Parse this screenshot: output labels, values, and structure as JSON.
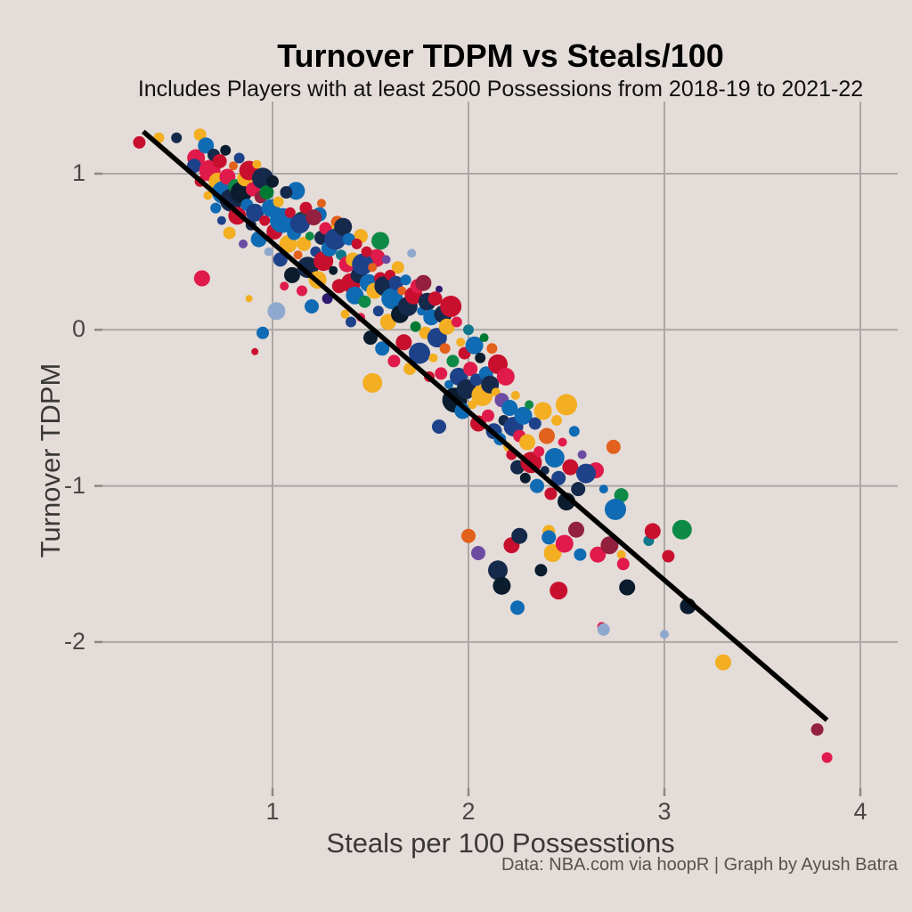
{
  "header": {
    "title": "Turnover TDPM vs Steals/100",
    "subtitle": "Includes Players with at least 2500 Possessions from 2018-19 to 2021-22"
  },
  "caption": "Data: NBA.com via hoopR | Graph by Ayush Batra",
  "style": {
    "background": "#E4DCD8",
    "grid_color": "#ABA7A4",
    "tick_mark_color": "#8B8885",
    "tick_label_color": "#4A4745",
    "axis_title_color": "#3A3836",
    "caption_color": "#56524E",
    "trend_color": "#000000"
  },
  "chart_data": {
    "type": "scatter",
    "title": "Turnover TDPM vs Steals/100",
    "subtitle": "Includes Players with at least 2500 Possessions from 2018-19 to 2021-22",
    "xlabel": "Steals per 100 Possesstions",
    "ylabel": "Turnover TDPM",
    "xlim": [
      0.13,
      4.19
    ],
    "ylim": [
      -2.92,
      1.46
    ],
    "x_ticks": [
      1,
      2,
      3,
      4
    ],
    "y_ticks": [
      1,
      0,
      -1,
      -2
    ],
    "grid": true,
    "legend": "none",
    "trend_line": {
      "x1": 0.34,
      "y1": 1.27,
      "x2": 3.83,
      "y2": -2.5,
      "width": 5.5
    },
    "palette": [
      "#1D428A",
      "#0F6BB4",
      "#15294B",
      "#0B1C2E",
      "#C8102E",
      "#E01A4B",
      "#93203F",
      "#F3AE21",
      "#E2611C",
      "#007A33",
      "#0E8A47",
      "#0D4B2E",
      "#11788C",
      "#6C4BA3",
      "#2C1A6E",
      "#8FA9CE"
    ],
    "point_format": [
      "steals_per_100",
      "turnover_tdpm",
      "radius_px",
      "palette_index"
    ],
    "points": [
      [
        0.32,
        1.2,
        7,
        4
      ],
      [
        0.42,
        1.23,
        6,
        7
      ],
      [
        0.51,
        1.23,
        6,
        2
      ],
      [
        0.63,
        1.25,
        7,
        7
      ],
      [
        0.61,
        1.1,
        10,
        5
      ],
      [
        0.64,
        0.33,
        9,
        5
      ],
      [
        0.88,
        0.2,
        4,
        7
      ],
      [
        0.95,
        -0.02,
        7,
        1
      ],
      [
        0.91,
        -0.14,
        4,
        4
      ],
      [
        1.02,
        0.12,
        10,
        15
      ],
      [
        1.12,
        0.89,
        10,
        1
      ],
      [
        1.25,
        0.81,
        5,
        8
      ],
      [
        1.24,
        0.74,
        8,
        1
      ],
      [
        1.15,
        0.7,
        10,
        11
      ],
      [
        1.33,
        0.69,
        7,
        8
      ],
      [
        1.3,
        0.62,
        9,
        7
      ],
      [
        1.25,
        0.59,
        8,
        2
      ],
      [
        1.45,
        0.6,
        8,
        7
      ],
      [
        1.55,
        0.57,
        10,
        10
      ],
      [
        1.71,
        0.49,
        5,
        15
      ],
      [
        1.53,
        0.46,
        10,
        5
      ],
      [
        1.64,
        0.4,
        7,
        7
      ],
      [
        1.85,
        0.26,
        4,
        14
      ],
      [
        1.51,
        -0.34,
        11,
        7
      ],
      [
        2.0,
        -1.32,
        8,
        8
      ],
      [
        2.05,
        -1.43,
        8,
        13
      ],
      [
        2.15,
        -1.54,
        11,
        2
      ],
      [
        2.17,
        -1.64,
        10,
        3
      ],
      [
        2.22,
        -1.38,
        9,
        4
      ],
      [
        2.26,
        -1.32,
        9,
        2
      ],
      [
        2.41,
        -1.29,
        7,
        7
      ],
      [
        2.41,
        -1.33,
        8,
        1
      ],
      [
        2.43,
        -1.43,
        10,
        7
      ],
      [
        2.49,
        -1.37,
        10,
        5
      ],
      [
        2.55,
        -1.28,
        9,
        6
      ],
      [
        2.57,
        -1.44,
        7,
        1
      ],
      [
        2.66,
        -1.44,
        9,
        5
      ],
      [
        2.72,
        -1.38,
        10,
        6
      ],
      [
        2.78,
        -1.44,
        5,
        7
      ],
      [
        2.79,
        -1.5,
        7,
        5
      ],
      [
        2.81,
        -1.65,
        9,
        3
      ],
      [
        2.37,
        -1.54,
        7,
        3
      ],
      [
        2.46,
        -1.67,
        10,
        4
      ],
      [
        2.25,
        -1.78,
        8,
        1
      ],
      [
        2.68,
        -1.9,
        5,
        5
      ],
      [
        2.92,
        -1.35,
        6,
        12
      ],
      [
        2.94,
        -1.29,
        9,
        4
      ],
      [
        3.02,
        -1.45,
        7,
        4
      ],
      [
        2.74,
        -0.75,
        8,
        8
      ],
      [
        2.65,
        -0.9,
        9,
        5
      ],
      [
        2.69,
        -1.02,
        5,
        1
      ],
      [
        2.78,
        -1.06,
        8,
        10
      ],
      [
        2.75,
        -1.15,
        12,
        1
      ],
      [
        2.69,
        -1.92,
        7,
        15
      ],
      [
        3.0,
        -1.95,
        5,
        15
      ],
      [
        3.09,
        -1.28,
        11,
        10
      ],
      [
        3.12,
        -1.77,
        9,
        3
      ],
      [
        3.3,
        -2.13,
        9,
        7
      ],
      [
        3.78,
        -2.56,
        7,
        6
      ],
      [
        3.83,
        -2.74,
        6,
        5
      ],
      [
        0.6,
        1.05,
        8,
        0
      ],
      [
        0.63,
        0.95,
        6,
        4
      ],
      [
        0.66,
        1.18,
        9,
        1
      ],
      [
        0.67,
        0.86,
        5,
        7
      ],
      [
        0.68,
        1.02,
        12,
        5
      ],
      [
        0.7,
        1.12,
        7,
        2
      ],
      [
        0.71,
        0.78,
        6,
        1
      ],
      [
        0.72,
        0.95,
        10,
        7
      ],
      [
        0.73,
        1.08,
        8,
        4
      ],
      [
        0.74,
        0.7,
        5,
        0
      ],
      [
        0.75,
        0.88,
        13,
        1
      ],
      [
        0.76,
        1.15,
        6,
        3
      ],
      [
        0.77,
        0.98,
        9,
        5
      ],
      [
        0.78,
        0.62,
        7,
        7
      ],
      [
        0.79,
        0.83,
        13,
        2
      ],
      [
        0.8,
        1.05,
        5,
        8
      ],
      [
        0.81,
        0.92,
        8,
        10
      ],
      [
        0.82,
        0.73,
        10,
        4
      ],
      [
        0.83,
        1.1,
        6,
        0
      ],
      [
        0.84,
        0.88,
        12,
        3
      ],
      [
        0.85,
        0.55,
        5,
        13
      ],
      [
        0.86,
        0.97,
        9,
        7
      ],
      [
        0.87,
        0.8,
        7,
        1
      ],
      [
        0.88,
        1.02,
        11,
        4
      ],
      [
        0.89,
        0.67,
        6,
        2
      ],
      [
        0.9,
        0.9,
        8,
        5
      ],
      [
        0.91,
        0.75,
        10,
        0
      ],
      [
        0.92,
        1.06,
        5,
        7
      ],
      [
        0.93,
        0.58,
        9,
        1
      ],
      [
        0.94,
        0.85,
        7,
        6
      ],
      [
        0.95,
        0.97,
        12,
        2
      ],
      [
        0.96,
        0.7,
        6,
        4
      ],
      [
        0.97,
        0.88,
        8,
        9
      ],
      [
        0.98,
        0.5,
        5,
        15
      ],
      [
        0.99,
        0.78,
        10,
        1
      ],
      [
        1.0,
        0.95,
        7,
        3
      ],
      [
        1.01,
        0.63,
        9,
        4
      ],
      [
        1.03,
        0.82,
        6,
        7
      ],
      [
        1.04,
        0.45,
        8,
        0
      ],
      [
        1.05,
        0.7,
        14,
        1
      ],
      [
        1.06,
        0.28,
        5,
        5
      ],
      [
        1.07,
        0.88,
        7,
        2
      ],
      [
        1.08,
        0.55,
        10,
        7
      ],
      [
        1.09,
        0.75,
        6,
        4
      ],
      [
        1.1,
        0.35,
        9,
        3
      ],
      [
        1.11,
        0.62,
        8,
        1
      ],
      [
        1.13,
        0.48,
        5,
        8
      ],
      [
        1.14,
        0.68,
        11,
        0
      ],
      [
        1.15,
        0.25,
        6,
        5
      ],
      [
        1.16,
        0.55,
        8,
        7
      ],
      [
        1.17,
        0.78,
        7,
        4
      ],
      [
        1.18,
        0.4,
        12,
        2
      ],
      [
        1.19,
        0.6,
        5,
        10
      ],
      [
        1.2,
        0.15,
        8,
        1
      ],
      [
        1.21,
        0.72,
        9,
        6
      ],
      [
        1.22,
        0.5,
        6,
        0
      ],
      [
        1.23,
        0.32,
        10,
        7
      ],
      [
        1.26,
        0.44,
        11,
        4
      ],
      [
        1.27,
        0.65,
        7,
        5
      ],
      [
        1.28,
        0.2,
        6,
        14
      ],
      [
        1.29,
        0.52,
        9,
        1
      ],
      [
        1.31,
        0.38,
        5,
        3
      ],
      [
        1.32,
        0.58,
        12,
        0
      ],
      [
        1.34,
        0.28,
        8,
        4
      ],
      [
        1.35,
        0.48,
        6,
        12
      ],
      [
        1.36,
        0.66,
        10,
        2
      ],
      [
        1.37,
        0.1,
        5,
        7
      ],
      [
        1.38,
        0.42,
        9,
        5
      ],
      [
        1.39,
        0.58,
        7,
        1
      ],
      [
        1.4,
        0.3,
        11,
        4
      ],
      [
        1.4,
        0.05,
        6,
        0
      ],
      [
        1.41,
        0.45,
        8,
        7
      ],
      [
        1.42,
        0.22,
        10,
        1
      ],
      [
        1.43,
        0.55,
        6,
        4
      ],
      [
        1.44,
        0.35,
        9,
        2
      ],
      [
        1.45,
        0.08,
        5,
        5
      ],
      [
        1.46,
        0.42,
        12,
        0
      ],
      [
        1.47,
        0.18,
        7,
        10
      ],
      [
        1.48,
        0.5,
        6,
        4
      ],
      [
        1.49,
        0.3,
        10,
        1
      ],
      [
        1.5,
        -0.05,
        8,
        3
      ],
      [
        1.51,
        0.4,
        5,
        8
      ],
      [
        1.52,
        0.25,
        9,
        7
      ],
      [
        1.54,
        0.12,
        6,
        0
      ],
      [
        1.55,
        0.33,
        7,
        4
      ],
      [
        1.56,
        -0.12,
        8,
        1
      ],
      [
        1.57,
        0.28,
        11,
        2
      ],
      [
        1.58,
        0.45,
        5,
        13
      ],
      [
        1.59,
        0.05,
        9,
        7
      ],
      [
        1.6,
        0.35,
        6,
        4
      ],
      [
        1.61,
        0.2,
        12,
        1
      ],
      [
        1.62,
        -0.2,
        7,
        5
      ],
      [
        1.63,
        0.3,
        8,
        0
      ],
      [
        1.65,
        0.1,
        10,
        3
      ],
      [
        1.66,
        0.25,
        5,
        8
      ],
      [
        1.67,
        -0.08,
        9,
        4
      ],
      [
        1.68,
        0.32,
        6,
        1
      ],
      [
        1.69,
        0.15,
        11,
        2
      ],
      [
        1.7,
        -0.25,
        7,
        7
      ],
      [
        1.72,
        0.22,
        10,
        4
      ],
      [
        1.73,
        0.02,
        6,
        9
      ],
      [
        1.74,
        0.28,
        8,
        5
      ],
      [
        1.75,
        -0.15,
        12,
        0
      ],
      [
        1.76,
        0.12,
        5,
        1
      ],
      [
        1.77,
        0.3,
        9,
        6
      ],
      [
        1.78,
        -0.02,
        7,
        7
      ],
      [
        1.79,
        0.18,
        10,
        2
      ],
      [
        1.8,
        -0.3,
        6,
        4
      ],
      [
        1.81,
        0.08,
        9,
        1
      ],
      [
        1.82,
        -0.18,
        5,
        7
      ],
      [
        1.83,
        0.2,
        8,
        4
      ],
      [
        1.84,
        -0.05,
        11,
        0
      ],
      [
        1.86,
        -0.28,
        7,
        5
      ],
      [
        1.87,
        0.1,
        10,
        2
      ],
      [
        1.88,
        -0.12,
        6,
        8
      ],
      [
        1.89,
        0.02,
        9,
        7
      ],
      [
        1.9,
        -0.35,
        5,
        1
      ],
      [
        1.91,
        0.15,
        12,
        4
      ],
      [
        1.92,
        -0.2,
        7,
        10
      ],
      [
        1.93,
        -0.45,
        14,
        3
      ],
      [
        1.94,
        0.05,
        6,
        5
      ],
      [
        1.95,
        -0.3,
        10,
        0
      ],
      [
        1.96,
        -0.08,
        5,
        7
      ],
      [
        1.97,
        -0.52,
        9,
        1
      ],
      [
        1.98,
        -0.15,
        7,
        4
      ],
      [
        1.99,
        -0.38,
        11,
        2
      ],
      [
        2.0,
        0.0,
        6,
        12
      ],
      [
        2.01,
        -0.25,
        8,
        5
      ],
      [
        2.02,
        -0.48,
        5,
        7
      ],
      [
        2.03,
        -0.1,
        10,
        1
      ],
      [
        2.04,
        -0.32,
        7,
        0
      ],
      [
        2.05,
        -0.6,
        9,
        4
      ],
      [
        2.06,
        -0.18,
        6,
        3
      ],
      [
        2.07,
        -0.42,
        12,
        7
      ],
      [
        2.08,
        -0.05,
        5,
        9
      ],
      [
        2.09,
        -0.28,
        8,
        1
      ],
      [
        2.1,
        -0.55,
        7,
        5
      ],
      [
        2.11,
        -0.35,
        10,
        2
      ],
      [
        2.12,
        -0.12,
        6,
        8
      ],
      [
        2.13,
        -0.65,
        9,
        0
      ],
      [
        2.14,
        -0.4,
        5,
        7
      ],
      [
        2.15,
        -0.22,
        11,
        4
      ],
      [
        2.16,
        -0.7,
        7,
        1
      ],
      [
        2.17,
        -0.45,
        8,
        13
      ],
      [
        2.18,
        -0.58,
        6,
        2
      ],
      [
        2.19,
        -0.3,
        10,
        5
      ],
      [
        2.2,
        -0.75,
        5,
        7
      ],
      [
        1.85,
        -0.62,
        8,
        0
      ],
      [
        2.21,
        -0.5,
        9,
        1
      ],
      [
        2.22,
        -0.8,
        6,
        4
      ],
      [
        2.23,
        -0.62,
        11,
        0
      ],
      [
        2.24,
        -0.42,
        5,
        7
      ],
      [
        2.25,
        -0.88,
        8,
        2
      ],
      [
        2.26,
        -0.68,
        7,
        5
      ],
      [
        2.28,
        -0.55,
        10,
        1
      ],
      [
        2.29,
        -0.95,
        6,
        3
      ],
      [
        2.3,
        -0.72,
        9,
        7
      ],
      [
        2.31,
        -0.48,
        5,
        10
      ],
      [
        2.32,
        -0.85,
        12,
        4
      ],
      [
        2.34,
        -0.6,
        7,
        0
      ],
      [
        2.35,
        -1.0,
        8,
        1
      ],
      [
        2.36,
        -0.78,
        6,
        5
      ],
      [
        2.38,
        -0.52,
        10,
        7
      ],
      [
        2.39,
        -0.9,
        5,
        2
      ],
      [
        2.4,
        -0.68,
        9,
        8
      ],
      [
        2.42,
        -1.05,
        7,
        4
      ],
      [
        2.44,
        -0.82,
        11,
        1
      ],
      [
        2.45,
        -0.58,
        6,
        7
      ],
      [
        2.46,
        -0.95,
        8,
        0
      ],
      [
        2.48,
        -0.72,
        5,
        5
      ],
      [
        2.5,
        -1.1,
        10,
        3
      ],
      [
        2.5,
        -0.48,
        12,
        7
      ],
      [
        2.52,
        -0.88,
        9,
        4
      ],
      [
        2.54,
        -0.65,
        6,
        1
      ],
      [
        2.56,
        -1.02,
        8,
        2
      ],
      [
        2.58,
        -0.8,
        5,
        13
      ],
      [
        2.6,
        -0.92,
        11,
        0
      ]
    ]
  }
}
